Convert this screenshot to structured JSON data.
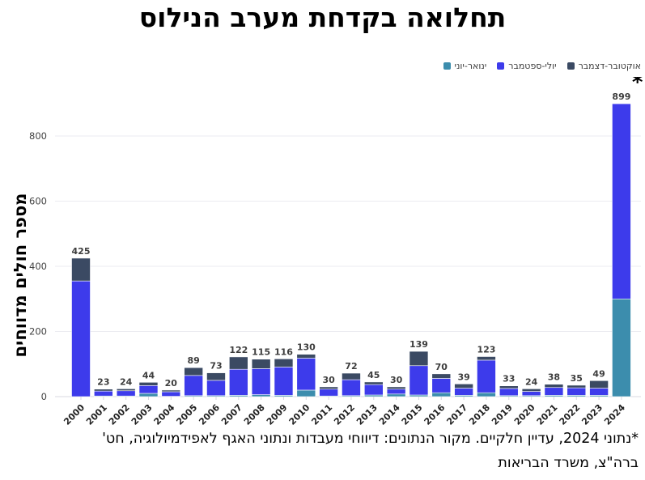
{
  "title": "תחלואה בקדחת מערב הנילוס",
  "legend": {
    "items": [
      {
        "label": "ינואר-יוני",
        "color": "#3c8dad"
      },
      {
        "label": "יולי-ספטמבר",
        "color": "#3d3beb"
      },
      {
        "label": "אוקטובר-דצמבר",
        "color": "#3b4a63"
      }
    ]
  },
  "y_axis_title": "מספר חולים מדווחים",
  "footnote_lines": [
    "*נתוני 2024, עדיין חלקיים. מקור הנתונים: דיווחי מעבדות ונתוני האגף לאפידמיולוגיה, חט'",
    "ברה\"צ, משרד הבריאות"
  ],
  "chart_data": {
    "type": "bar",
    "stacked": true,
    "title": "תחלואה בקדחת מערב הנילוס",
    "ylabel": "מספר חולים מדווחים",
    "xlabel": "",
    "grid": true,
    "legend_position": "top-right",
    "yticks": [
      0,
      200,
      400,
      600,
      800
    ],
    "ylim": [
      0,
      950
    ],
    "categories": [
      "2000",
      "2001",
      "2002",
      "2003",
      "2004",
      "2005",
      "2006",
      "2007",
      "2008",
      "2009",
      "2010",
      "2011",
      "2012",
      "2013",
      "2014",
      "2015",
      "2016",
      "2017",
      "2018",
      "2019",
      "2020",
      "2021",
      "2022",
      "2023",
      "2024"
    ],
    "totals": [
      425,
      23,
      24,
      44,
      20,
      89,
      73,
      122,
      115,
      116,
      130,
      30,
      72,
      45,
      30,
      139,
      70,
      39,
      123,
      33,
      24,
      38,
      35,
      49,
      899
    ],
    "annotation": "*",
    "annotation_target": "2024",
    "series": [
      {
        "name": "ינואר-יוני",
        "color": "#3c8dad",
        "values": [
          0,
          2,
          2,
          10,
          1,
          3,
          3,
          4,
          6,
          4,
          20,
          2,
          3,
          5,
          8,
          5,
          12,
          4,
          12,
          3,
          3,
          4,
          4,
          4,
          300
        ]
      },
      {
        "name": "יולי-ספטמבר",
        "color": "#3d3beb",
        "values": [
          355,
          15,
          16,
          24,
          14,
          62,
          47,
          80,
          80,
          87,
          98,
          21,
          49,
          32,
          15,
          90,
          44,
          22,
          100,
          22,
          13,
          24,
          23,
          22,
          599
        ]
      },
      {
        "name": "אוקטובר-דצמבר",
        "color": "#3b4a63",
        "values": [
          70,
          6,
          6,
          10,
          5,
          24,
          23,
          38,
          29,
          25,
          12,
          7,
          20,
          8,
          7,
          44,
          14,
          13,
          11,
          8,
          8,
          10,
          8,
          23,
          0
        ]
      }
    ]
  }
}
